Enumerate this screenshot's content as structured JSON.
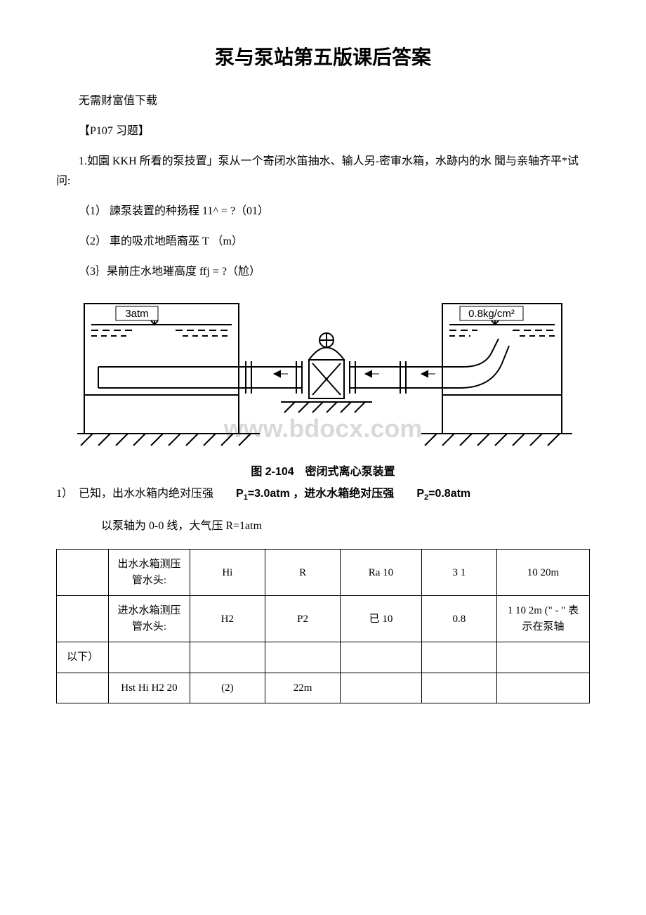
{
  "title": "泵与泵站第五版课后答案",
  "lines": {
    "l1": "无需财富值下载",
    "l2": "【P107 习题】",
    "l3": "1.如園 KKH 所看的泵技置」泵从一个寄闭水笛抽水、输人另-密审水箱，水跡内的水 聞与亲轴齐平*试问:",
    "l4": "（1） 諫泵装置的种扬程 11^ = ?（01）",
    "l5": "（2） 車的吸朮地晤裔巫 T （m）",
    "l6": "（3｝杲前庄水地璀高度 ffj = ?（尬）"
  },
  "diagram": {
    "label_left": "3atm",
    "label_right": "0.8kg/cm²",
    "watermark": "www.bdocx.com",
    "stroke": "#000000",
    "watermark_color": "#d9d9d9",
    "wm_fontsize": 36
  },
  "caption": "图 2-104　密闭式离心泵装置",
  "after1_a": "1）　已知，出水水箱内绝对压强　　",
  "after1_b": "P",
  "after1_b2": "1",
  "after1_c": "=3.0atm ，进水水箱绝对压强　　",
  "after1_d": "P",
  "after1_d2": "2",
  "after1_e": "=0.8atm",
  "after2": "以泵轴为 0-0 线，大气压 R=1atm",
  "table": {
    "rows": [
      [
        "",
        "出水水箱测压管水头:",
        "Hi",
        "R",
        "Ra 10",
        "3 1",
        "10 20m"
      ],
      [
        "",
        "进水水箱测压管水头:",
        "H2",
        "P2",
        "已 10",
        "0.8",
        "1 10 2m (\" - \" 表示在泵轴"
      ],
      [
        "以下）",
        "",
        "",
        "",
        "",
        "",
        ""
      ],
      [
        "",
        "Hst Hi H2 20",
        "(2)",
        "22m",
        "",
        "",
        ""
      ]
    ]
  }
}
